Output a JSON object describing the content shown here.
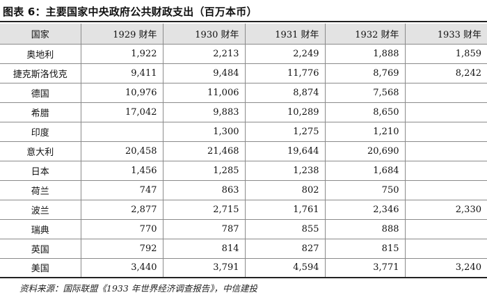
{
  "title": "图表 6：主要国家中央政府公共财政支出（百万本币）",
  "table": {
    "headers": [
      "国家",
      "1929 财年",
      "1930 财年",
      "1931 财年",
      "1932 财年",
      "1933 财年"
    ],
    "rows": [
      [
        "奥地利",
        "1,922",
        "2,213",
        "2,249",
        "1,888",
        "1,859"
      ],
      [
        "捷克斯洛伐克",
        "9,411",
        "9,484",
        "11,776",
        "8,769",
        "8,242"
      ],
      [
        "德国",
        "10,976",
        "11,006",
        "8,874",
        "7,568",
        ""
      ],
      [
        "希腊",
        "17,042",
        "9,883",
        "10,289",
        "8,650",
        ""
      ],
      [
        "印度",
        "",
        "1,300",
        "1,275",
        "1,210",
        ""
      ],
      [
        "意大利",
        "20,458",
        "21,468",
        "19,644",
        "20,690",
        ""
      ],
      [
        "日本",
        "1,456",
        "1,285",
        "1,238",
        "1,684",
        ""
      ],
      [
        "荷兰",
        "747",
        "863",
        "802",
        "750",
        ""
      ],
      [
        "波兰",
        "2,877",
        "2,715",
        "1,761",
        "2,346",
        "2,330"
      ],
      [
        "瑞典",
        "770",
        "787",
        "855",
        "888",
        ""
      ],
      [
        "英国",
        "792",
        "814",
        "827",
        "815",
        ""
      ],
      [
        "美国",
        "3,440",
        "3,791",
        "4,594",
        "3,771",
        "3,240"
      ]
    ]
  },
  "source": "资料来源：国际联盟《1933 年世界经济调查报告》，中信建投"
}
